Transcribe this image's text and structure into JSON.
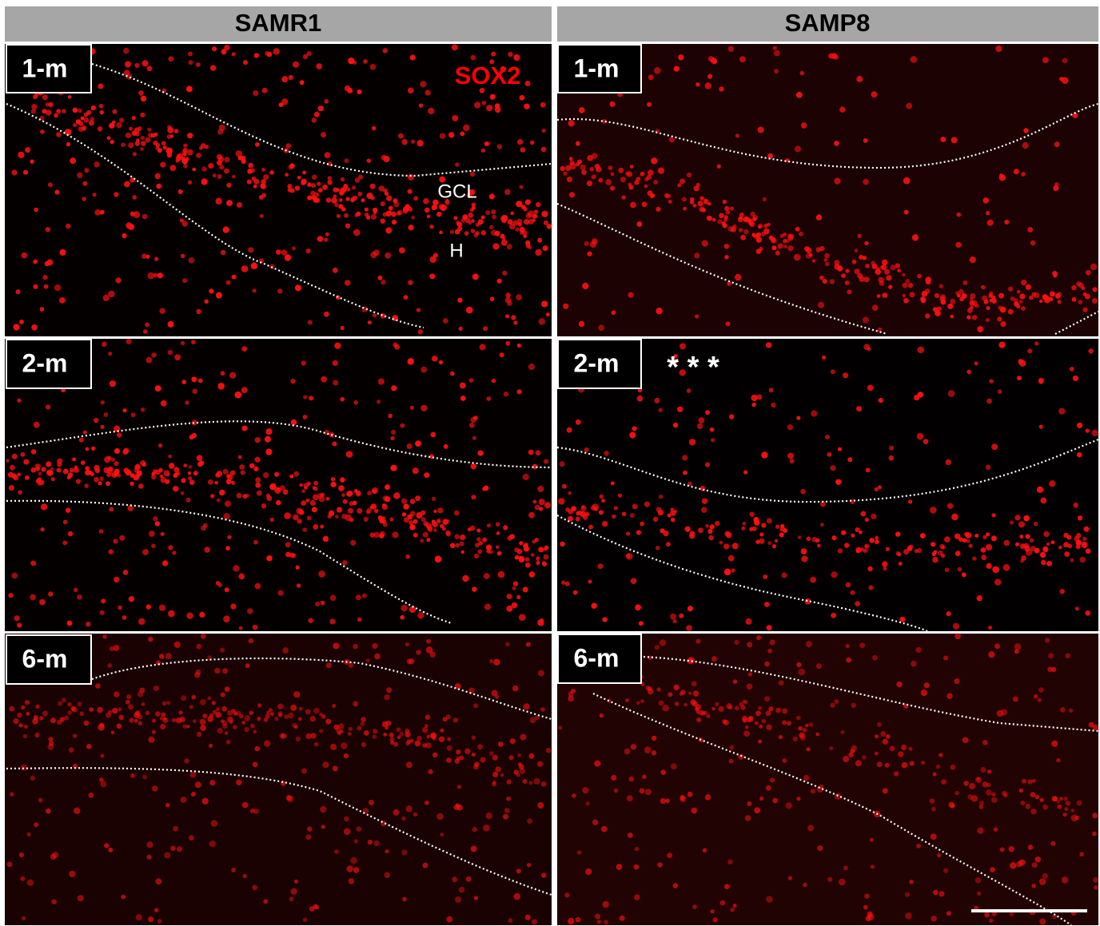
{
  "columns": [
    "SAMR1",
    "SAMP8"
  ],
  "panels": [
    {
      "label": "1-m"
    },
    {
      "label": "1-m"
    },
    {
      "label": "2-m"
    },
    {
      "label": "2-m"
    },
    {
      "label": "6-m"
    },
    {
      "label": "6-m"
    }
  ],
  "stain": "SOX2",
  "regions": {
    "gcl": "GCL",
    "hilus": "H"
  },
  "significance": "* * *"
}
